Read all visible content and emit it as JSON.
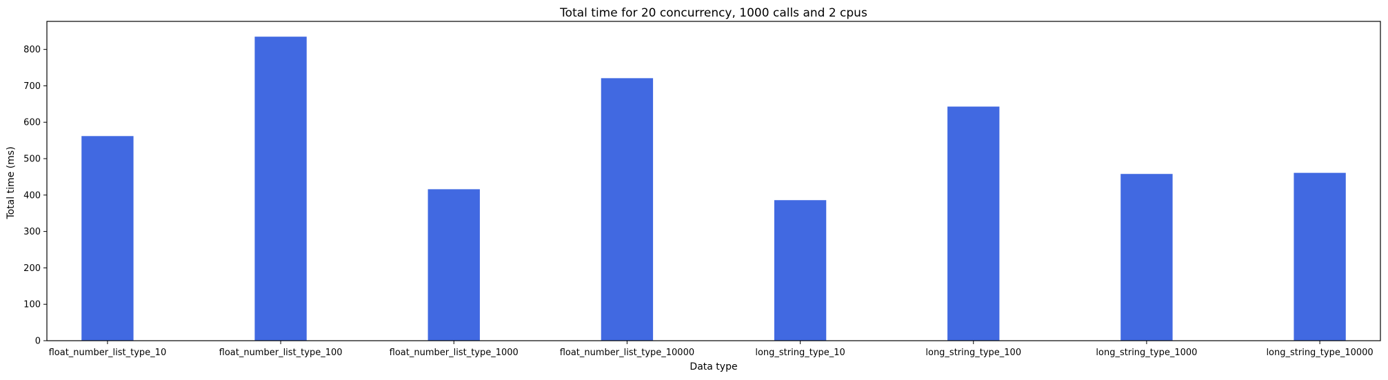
{
  "chart_data": {
    "type": "bar",
    "title": "Total time for 20 concurrency, 1000 calls and 2 cpus",
    "xlabel": "Data type",
    "ylabel": "Total time (ms)",
    "categories": [
      "float_number_list_type_10",
      "float_number_list_type_100",
      "float_number_list_type_1000",
      "float_number_list_type_10000",
      "long_string_type_10",
      "long_string_type_100",
      "long_string_type_1000",
      "long_string_type_10000"
    ],
    "values": [
      562,
      835,
      416,
      721,
      386,
      643,
      458,
      461
    ],
    "ylim": [
      0,
      877
    ],
    "yticks": [
      0,
      100,
      200,
      300,
      400,
      500,
      600,
      700,
      800
    ],
    "bar_color": "#4169e1",
    "grid": false
  }
}
